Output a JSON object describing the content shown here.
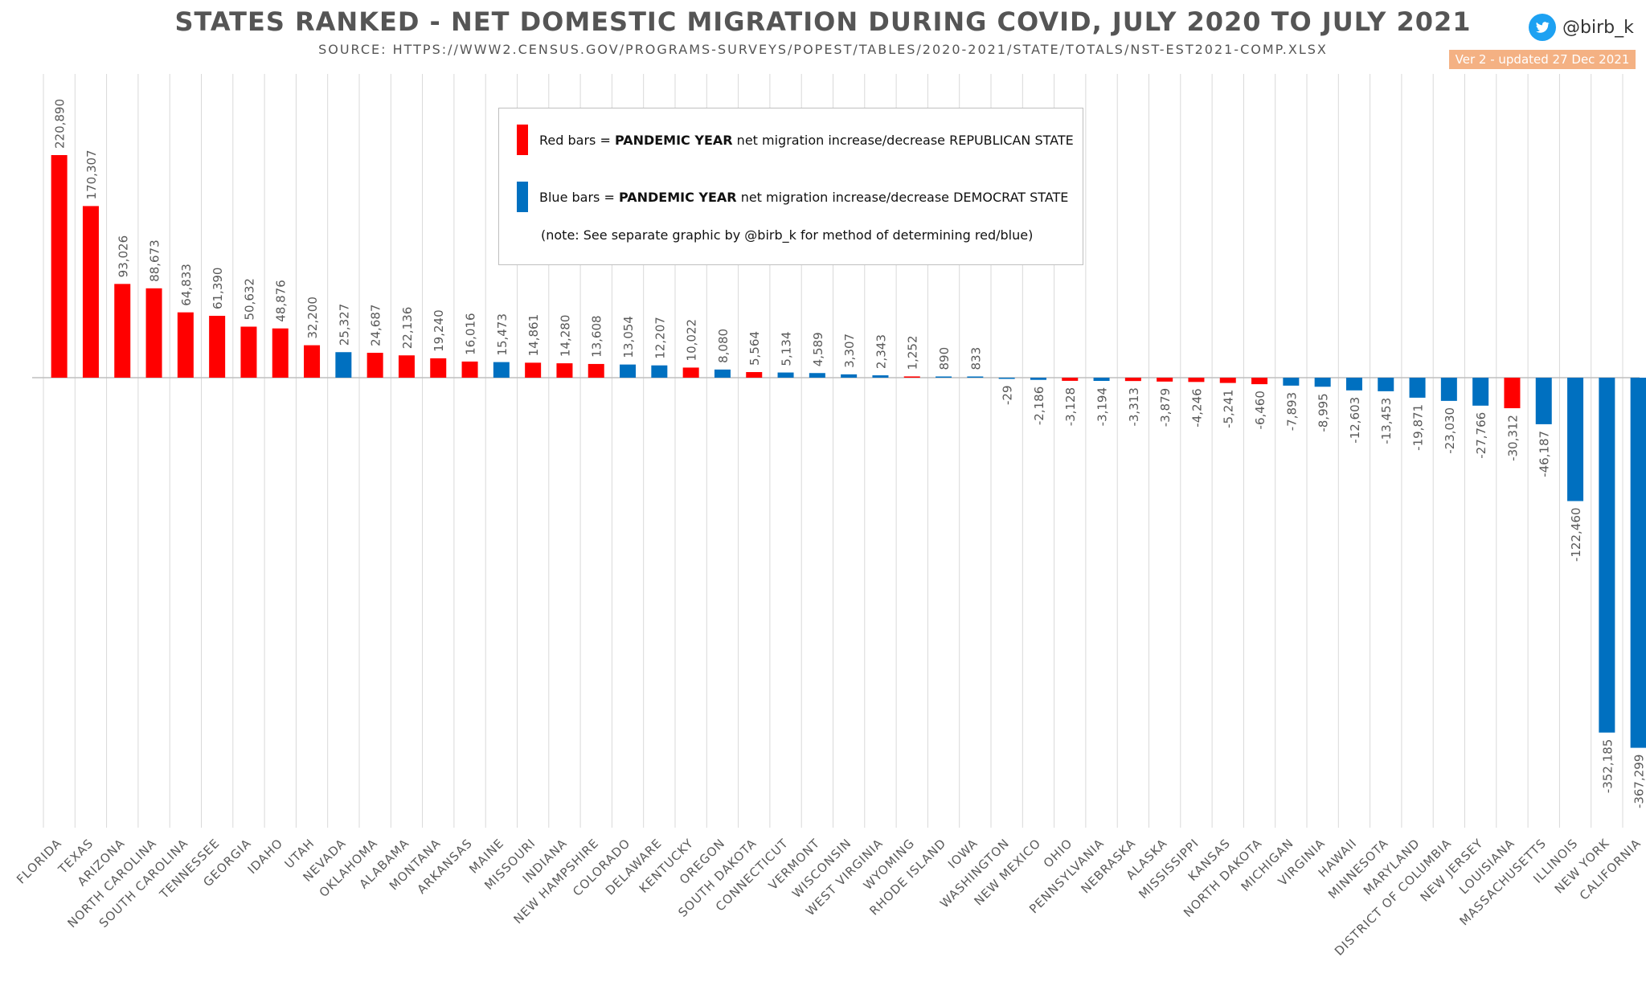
{
  "header": {
    "title": "STATES RANKED - NET DOMESTIC MIGRATION DURING COVID, JULY 2020 TO JULY 2021",
    "source": "SOURCE: HTTPS://WWW2.CENSUS.GOV/PROGRAMS-SURVEYS/POPEST/TABLES/2020-2021/STATE/TOTALS/NST-EST2021-COMP.XLSX",
    "handle": "@birb_k",
    "version": "Ver 2 - updated 27 Dec 2021"
  },
  "legend": {
    "red_prefix": "Red bars = ",
    "red_bold": "PANDEMIC YEAR",
    "red_suffix": " net migration increase/decrease REPUBLICAN STATE",
    "blue_prefix": "Blue bars = ",
    "blue_bold": "PANDEMIC YEAR",
    "blue_suffix": " net migration increase/decrease DEMOCRAT STATE",
    "note": "(note: See separate graphic by @birb_k for method of determining red/blue)"
  },
  "colors": {
    "red": "#ff0000",
    "blue": "#0070c0",
    "grid": "#d9d9d9",
    "text": "#595959"
  },
  "icons": {
    "twitter": "twitter-bird-icon"
  },
  "chart_data": {
    "type": "bar",
    "title": "STATES RANKED - NET DOMESTIC MIGRATION DURING COVID, JULY 2020 TO JULY 2021",
    "ylim": [
      -430000,
      300000
    ],
    "categories": [
      "FLORIDA",
      "TEXAS",
      "ARIZONA",
      "NORTH CAROLINA",
      "SOUTH CAROLINA",
      "TENNESSEE",
      "GEORGIA",
      "IDAHO",
      "UTAH",
      "NEVADA",
      "OKLAHOMA",
      "ALABAMA",
      "MONTANA",
      "ARKANSAS",
      "MAINE",
      "MISSOURI",
      "INDIANA",
      "NEW HAMPSHIRE",
      "COLORADO",
      "DELAWARE",
      "KENTUCKY",
      "OREGON",
      "SOUTH DAKOTA",
      "CONNECTICUT",
      "VERMONT",
      "WISCONSIN",
      "WEST VIRGINIA",
      "WYOMING",
      "RHODE ISLAND",
      "IOWA",
      "WASHINGTON",
      "NEW MEXICO",
      "OHIO",
      "PENNSYLVANIA",
      "NEBRASKA",
      "ALASKA",
      "MISSISSIPPI",
      "KANSAS",
      "NORTH DAKOTA",
      "MICHIGAN",
      "VIRGINIA",
      "HAWAII",
      "MINNESOTA",
      "MARYLAND",
      "DISTRICT OF COLUMBIA",
      "NEW JERSEY",
      "LOUISIANA",
      "MASSACHUSETTS",
      "ILLINOIS",
      "NEW YORK",
      "CALIFORNIA"
    ],
    "values": [
      220890,
      170307,
      93026,
      88673,
      64833,
      61390,
      50632,
      48876,
      32200,
      25327,
      24687,
      22136,
      19240,
      16016,
      15473,
      14861,
      14280,
      13608,
      13054,
      12207,
      10022,
      8080,
      5564,
      5134,
      4589,
      3307,
      2343,
      1252,
      890,
      833,
      -29,
      -2186,
      -3128,
      -3194,
      -3313,
      -3879,
      -4246,
      -5241,
      -6460,
      -7893,
      -8995,
      -12603,
      -13453,
      -19871,
      -23030,
      -27766,
      -30312,
      -46187,
      -122460,
      -352185,
      -367299
    ],
    "value_labels": [
      "220,890",
      "170,307",
      "93,026",
      "88,673",
      "64,833",
      "61,390",
      "50,632",
      "48,876",
      "32,200",
      "25,327",
      "24,687",
      "22,136",
      "19,240",
      "16,016",
      "15,473",
      "14,861",
      "14,280",
      "13,608",
      "13,054",
      "12,207",
      "10,022",
      "8,080",
      "5,564",
      "5,134",
      "4,589",
      "3,307",
      "2,343",
      "1,252",
      "890",
      "833",
      "-29",
      "-2,186",
      "-3,128",
      "-3,194",
      "-3,313",
      "-3,879",
      "-4,246",
      "-5,241",
      "-6,460",
      "-7,893",
      "-8,995",
      "-12,603",
      "-13,453",
      "-19,871",
      "-23,030",
      "-27,766",
      "-30,312",
      "-46,187",
      "-122,460",
      "-352,185",
      "-367,299"
    ],
    "party": [
      "R",
      "R",
      "R",
      "R",
      "R",
      "R",
      "R",
      "R",
      "R",
      "D",
      "R",
      "R",
      "R",
      "R",
      "D",
      "R",
      "R",
      "R",
      "D",
      "D",
      "R",
      "D",
      "R",
      "D",
      "D",
      "D",
      "D",
      "R",
      "D",
      "D",
      "D",
      "D",
      "R",
      "D",
      "R",
      "R",
      "R",
      "R",
      "R",
      "D",
      "D",
      "D",
      "D",
      "D",
      "D",
      "D",
      "R",
      "D",
      "D",
      "D",
      "D"
    ]
  }
}
